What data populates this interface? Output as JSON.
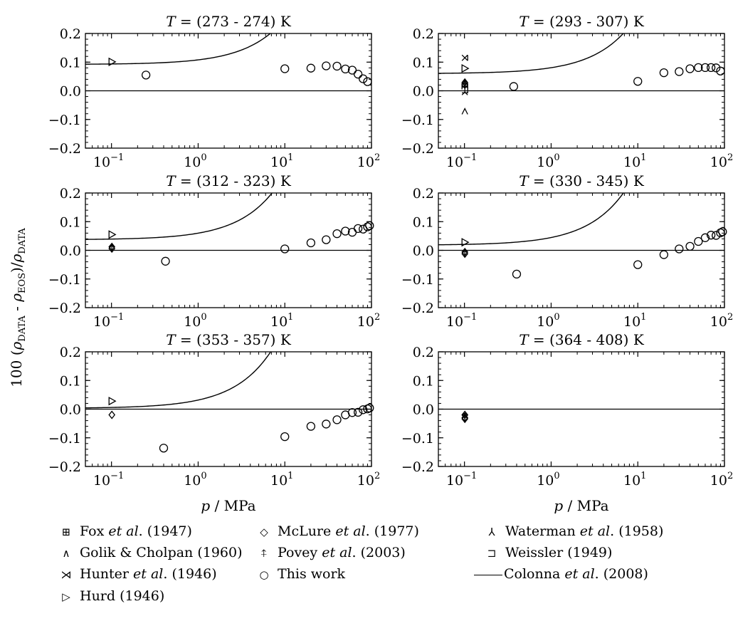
{
  "figure": {
    "ylabel_prefix": "100 (",
    "ylabel_rho": "ρ",
    "ylabel_data_sub": "DATA",
    "ylabel_minus": " - ",
    "ylabel_eos_sub": "EOS",
    "ylabel_suffix": ")/",
    "xlabel_p": "p",
    "xlabel_unit": " / MPa"
  },
  "legend": [
    {
      "id": "fox",
      "symbol": "⊞",
      "authors": "Fox ",
      "etal": "et al",
      "rest": ". (1947)"
    },
    {
      "id": "golik",
      "symbol": "∧",
      "authors": "Golik & Cholpan (1960)",
      "etal": "",
      "rest": ""
    },
    {
      "id": "hunter",
      "symbol": "⋊",
      "authors": "Hunter ",
      "etal": "et al",
      "rest": ". (1946)"
    },
    {
      "id": "hurd",
      "symbol": "▷",
      "authors": "Hurd (1946)",
      "etal": "",
      "rest": ""
    },
    {
      "id": "mclure",
      "symbol": "◇",
      "authors": "McLure ",
      "etal": "et al",
      "rest": ". (1977)"
    },
    {
      "id": "povey",
      "symbol": "⍏",
      "authors": "Povey ",
      "etal": "et al",
      "rest": ". (2003)"
    },
    {
      "id": "thiswork",
      "symbol": "○",
      "authors": "This work",
      "etal": "",
      "rest": ""
    },
    {
      "id": "waterman",
      "symbol": "⅄",
      "authors": "Waterman ",
      "etal": "et al",
      "rest": ". (1958)"
    },
    {
      "id": "weissler",
      "symbol": "⊐",
      "authors": "Weissler (1949)",
      "etal": "",
      "rest": ""
    },
    {
      "id": "colonna",
      "symbol": "line",
      "authors": "Colonna ",
      "etal": "et al",
      "rest": ". (2008)"
    }
  ],
  "chart_data": [
    {
      "type": "scatter",
      "title_T": "T",
      "title_rest": " = (273 - 274) K",
      "xscale": "log",
      "xlim": [
        0.05,
        100
      ],
      "ylim": [
        -0.2,
        0.2
      ],
      "yticks": [
        "0.2",
        "0.1",
        "0.0",
        "−0.1",
        "−0.2"
      ],
      "xticks": [
        "10",
        "10",
        "10",
        "10"
      ],
      "xtick_exp": [
        "−1",
        "0",
        "1",
        "2"
      ],
      "series": [
        {
          "name": "Hurd (1946)",
          "marker": "hurd",
          "x": [
            0.101
          ],
          "y": [
            0.101
          ]
        },
        {
          "name": "This work",
          "marker": "circle",
          "x": [
            0.25,
            10,
            20,
            30,
            40,
            50,
            60,
            70,
            80,
            90
          ],
          "y": [
            0.055,
            0.077,
            0.079,
            0.087,
            0.086,
            0.076,
            0.072,
            0.058,
            0.042,
            0.032
          ]
        }
      ],
      "curve": {
        "name": "Colonna et al. (2008)",
        "y0": 0.092,
        "coef": 0.0159
      }
    },
    {
      "type": "scatter",
      "title_T": "T",
      "title_rest": " = (293 - 307) K",
      "xscale": "log",
      "xlim": [
        0.05,
        100
      ],
      "ylim": [
        -0.2,
        0.2
      ],
      "yticks": [
        "0.2",
        "0.1",
        "0.0",
        "−0.1",
        "−0.2"
      ],
      "xticks": [
        "10",
        "10",
        "10",
        "10"
      ],
      "xtick_exp": [
        "−1",
        "0",
        "1",
        "2"
      ],
      "series": [
        {
          "name": "Hunter et al. (1946)",
          "marker": "hunter",
          "x": [
            0.101
          ],
          "y": [
            0.115
          ]
        },
        {
          "name": "Hurd (1946)",
          "marker": "hurd",
          "x": [
            0.101
          ],
          "y": [
            0.078
          ]
        },
        {
          "name": "McLure et al. (1977)",
          "marker": "mclure",
          "x": [
            0.101,
            0.101
          ],
          "y": [
            0.029,
            0.021
          ]
        },
        {
          "name": "Povey et al. (2003)",
          "marker": "povey",
          "x": [
            0.101
          ],
          "y": [
            0.025
          ]
        },
        {
          "name": "Fox et al. (1947)",
          "marker": "fox",
          "x": [
            0.101
          ],
          "y": [
            0.015
          ]
        },
        {
          "name": "Weissler (1949)",
          "marker": "weissler",
          "x": [
            0.101
          ],
          "y": [
            0.003
          ]
        },
        {
          "name": "Waterman et al. (1958)",
          "marker": "waterman",
          "x": [
            0.101
          ],
          "y": [
            -0.002
          ]
        },
        {
          "name": "Golik & Cholpan (1960)",
          "marker": "golik",
          "x": [
            0.101
          ],
          "y": [
            -0.072
          ]
        },
        {
          "name": "This work",
          "marker": "circle",
          "x": [
            0.37,
            10,
            20,
            30,
            40,
            50,
            60,
            70,
            80,
            90
          ],
          "y": [
            0.015,
            0.033,
            0.063,
            0.067,
            0.077,
            0.081,
            0.081,
            0.081,
            0.08,
            0.069
          ]
        }
      ],
      "curve": {
        "name": "Colonna et al. (2008)",
        "y0": 0.06,
        "coef": 0.0206
      }
    },
    {
      "type": "scatter",
      "title_T": "T",
      "title_rest": " = (312 - 323) K",
      "xscale": "log",
      "xlim": [
        0.05,
        100
      ],
      "ylim": [
        -0.2,
        0.2
      ],
      "yticks": [
        "0.2",
        "0.1",
        "0.0",
        "−0.1",
        "−0.2"
      ],
      "xticks": [
        "10",
        "10",
        "10",
        "10"
      ],
      "xtick_exp": [
        "−1",
        "0",
        "1",
        "2"
      ],
      "series": [
        {
          "name": "Hurd (1946)",
          "marker": "hurd",
          "x": [
            0.101
          ],
          "y": [
            0.055
          ]
        },
        {
          "name": "McLure et al. (1977)",
          "marker": "mclure",
          "x": [
            0.101,
            0.101
          ],
          "y": [
            0.012,
            0.006
          ]
        },
        {
          "name": "Povey et al. (2003)",
          "marker": "povey",
          "x": [
            0.101
          ],
          "y": [
            0.009
          ]
        },
        {
          "name": "This work",
          "marker": "circle",
          "x": [
            0.42,
            10,
            20,
            30,
            40,
            50,
            60,
            70,
            80,
            90,
            95
          ],
          "y": [
            -0.038,
            0.005,
            0.026,
            0.037,
            0.058,
            0.067,
            0.063,
            0.076,
            0.074,
            0.082,
            0.086
          ]
        }
      ],
      "curve": {
        "name": "Colonna et al. (2008)",
        "y0": 0.037,
        "coef": 0.0229
      }
    },
    {
      "type": "scatter",
      "title_T": "T",
      "title_rest": " = (330 - 345) K",
      "xscale": "log",
      "xlim": [
        0.05,
        100
      ],
      "ylim": [
        -0.2,
        0.2
      ],
      "yticks": [
        "0.2",
        "0.1",
        "0.0",
        "−0.1",
        "−0.2"
      ],
      "xticks": [
        "10",
        "10",
        "10",
        "10"
      ],
      "xtick_exp": [
        "−1",
        "0",
        "1",
        "2"
      ],
      "series": [
        {
          "name": "Hurd (1946)",
          "marker": "hurd",
          "x": [
            0.101
          ],
          "y": [
            0.028
          ]
        },
        {
          "name": "McLure et al. (1977)",
          "marker": "mclure",
          "x": [
            0.101,
            0.101
          ],
          "y": [
            -0.006,
            -0.012
          ]
        },
        {
          "name": "Povey et al. (2003)",
          "marker": "povey",
          "x": [
            0.101
          ],
          "y": [
            -0.009
          ]
        },
        {
          "name": "This work",
          "marker": "circle",
          "x": [
            0.4,
            10,
            20,
            30,
            40,
            50,
            60,
            70,
            80,
            90,
            95
          ],
          "y": [
            -0.083,
            -0.05,
            -0.015,
            0.005,
            0.014,
            0.031,
            0.044,
            0.053,
            0.052,
            0.061,
            0.065
          ]
        }
      ],
      "curve": {
        "name": "Colonna et al. (2008)",
        "y0": 0.018,
        "coef": 0.0267
      }
    },
    {
      "type": "scatter",
      "title_T": "T",
      "title_rest": " = (353 - 357) K",
      "xscale": "log",
      "xlim": [
        0.05,
        100
      ],
      "ylim": [
        -0.2,
        0.2
      ],
      "yticks": [
        "0.2",
        "0.1",
        "0.0",
        "−0.1",
        "−0.2"
      ],
      "xticks": [
        "10",
        "10",
        "10",
        "10"
      ],
      "xtick_exp": [
        "−1",
        "0",
        "1",
        "2"
      ],
      "series": [
        {
          "name": "Hurd (1946)",
          "marker": "hurd",
          "x": [
            0.101
          ],
          "y": [
            0.028
          ]
        },
        {
          "name": "McLure et al. (1977)",
          "marker": "mclure",
          "x": [
            0.101
          ],
          "y": [
            -0.02
          ]
        },
        {
          "name": "This work",
          "marker": "circle",
          "x": [
            0.4,
            10,
            20,
            30,
            40,
            50,
            60,
            70,
            80,
            90,
            95
          ],
          "y": [
            -0.136,
            -0.096,
            -0.06,
            -0.052,
            -0.037,
            -0.02,
            -0.012,
            -0.011,
            -0.002,
            0.001,
            0.004
          ]
        }
      ],
      "curve": {
        "name": "Colonna et al. (2008)",
        "y0": 0.003,
        "coef": 0.0287
      }
    },
    {
      "type": "scatter",
      "title_T": "T",
      "title_rest": " = (364 - 408) K",
      "xscale": "log",
      "xlim": [
        0.05,
        100
      ],
      "ylim": [
        -0.2,
        0.2
      ],
      "yticks": [
        "0.2",
        "0.1",
        "0.0",
        "−0.1",
        "−0.2"
      ],
      "xticks": [
        "10",
        "10",
        "10",
        "10"
      ],
      "xtick_exp": [
        "−1",
        "0",
        "1",
        "2"
      ],
      "series": [
        {
          "name": "McLure et al. (1977)",
          "marker": "mclure",
          "x": [
            0.101,
            0.101,
            0.101
          ],
          "y": [
            -0.02,
            -0.03,
            -0.034
          ]
        },
        {
          "name": "Povey et al. (2003)",
          "marker": "povey",
          "x": [
            0.101
          ],
          "y": [
            -0.026
          ]
        }
      ],
      "curve": null
    }
  ]
}
